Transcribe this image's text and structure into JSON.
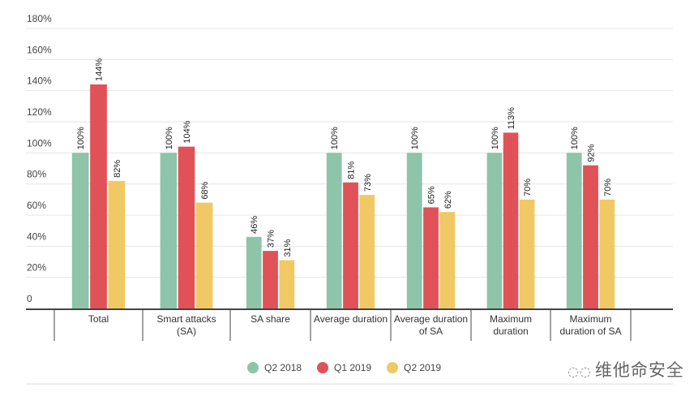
{
  "chart_data": {
    "type": "bar",
    "categories": [
      [
        "Total"
      ],
      [
        "Smart attacks",
        "(SA)"
      ],
      [
        "SA share"
      ],
      [
        "Average duration"
      ],
      [
        "Average duration",
        "of SA"
      ],
      [
        "Maximum",
        "duration"
      ],
      [
        "Maximum",
        "duration of SA"
      ]
    ],
    "series": [
      {
        "name": "Q2 2018",
        "color": "#8dc4aa",
        "values": [
          100,
          100,
          46,
          100,
          100,
          100,
          100
        ]
      },
      {
        "name": "Q1 2019",
        "color": "#e05258",
        "values": [
          144,
          104,
          37,
          81,
          65,
          113,
          92
        ]
      },
      {
        "name": "Q2 2019",
        "color": "#f0c964",
        "values": [
          82,
          68,
          31,
          73,
          62,
          70,
          70
        ]
      }
    ],
    "yticks": [
      "0",
      "20%",
      "40%",
      "60%",
      "80%",
      "100%",
      "120%",
      "140%",
      "160%",
      "180%"
    ],
    "ylim": [
      0,
      180
    ],
    "grid": true,
    "legend": "bottom",
    "data_labels_suffix": "%"
  },
  "watermark": {
    "text": "维他命安全",
    "icon": "wechat-icon"
  }
}
